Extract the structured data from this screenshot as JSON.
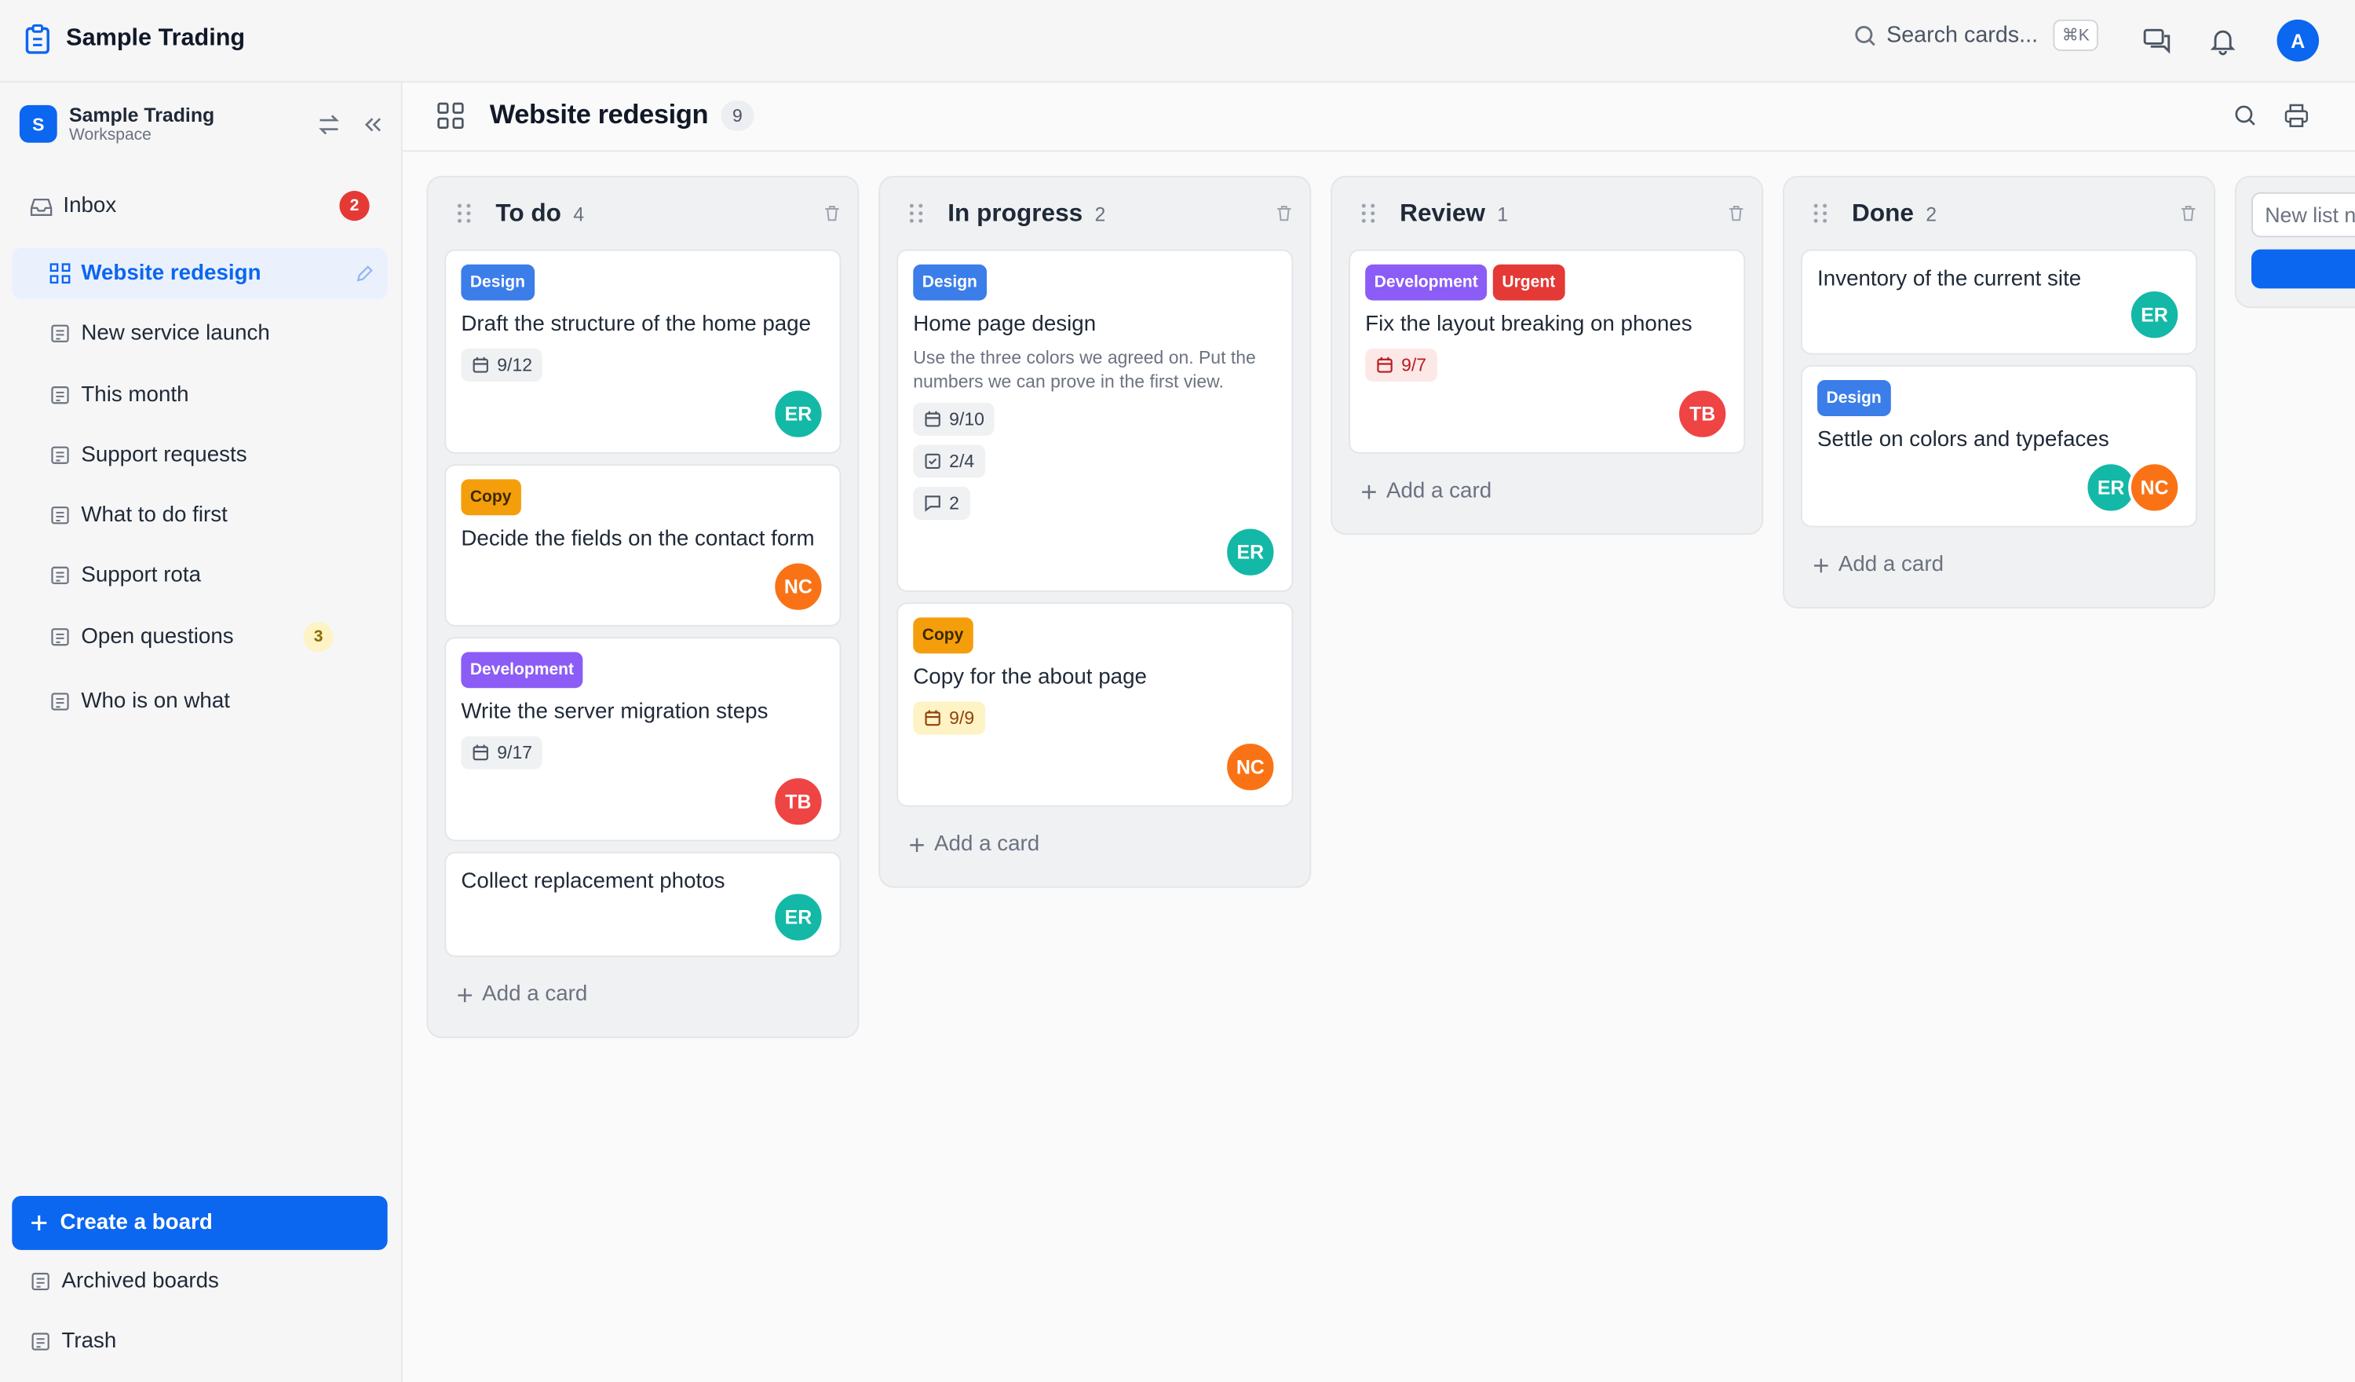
{
  "topbar": {
    "app_name": "Sample Trading",
    "search_placeholder": "Search cards...",
    "shortcut": "⌘K",
    "avatar": "A"
  },
  "sidebar": {
    "workspace_initial": "S",
    "workspace_name": "Sample Trading",
    "workspace_label": "Workspace",
    "inbox": {
      "label": "Inbox",
      "count": 2
    },
    "boards": [
      {
        "label": "Website redesign",
        "active": true
      },
      {
        "label": "New service launch"
      },
      {
        "label": "This month"
      },
      {
        "label": "Support requests"
      },
      {
        "label": "What to do first"
      },
      {
        "label": "Support rota"
      },
      {
        "label": "Open questions",
        "badge": 3
      },
      {
        "label": "Who is on what"
      }
    ],
    "create_button": "Create a board",
    "footer": [
      "Archived boards",
      "Trash"
    ]
  },
  "board": {
    "title": "Website redesign",
    "count": 9,
    "add_card": "Add a card",
    "new_list_placeholder": "New list name",
    "lists": [
      {
        "title": "To do",
        "count": 4,
        "cards": [
          {
            "labels": [
              {
                "text": "Design",
                "color": "#3b7de9"
              }
            ],
            "title": "Draft the structure of the home page",
            "due": {
              "text": "9/12"
            },
            "members": [
              {
                "initials": "ER",
                "color": "#14b8a6"
              }
            ]
          },
          {
            "labels": [
              {
                "text": "Copy",
                "color": "#f59e0b"
              }
            ],
            "title": "Decide the fields on the contact form",
            "members": [
              {
                "initials": "NC",
                "color": "#f97316"
              }
            ]
          },
          {
            "labels": [
              {
                "text": "Development",
                "color": "#8b5cf6"
              }
            ],
            "title": "Write the server migration steps",
            "due": {
              "text": "9/17"
            },
            "members": [
              {
                "initials": "TB",
                "color": "#ef4444"
              }
            ]
          },
          {
            "title": "Collect replacement photos",
            "members": [
              {
                "initials": "ER",
                "color": "#14b8a6"
              }
            ]
          }
        ]
      },
      {
        "title": "In progress",
        "count": 2,
        "cards": [
          {
            "labels": [
              {
                "text": "Design",
                "color": "#3b7de9"
              }
            ],
            "title": "Home page design",
            "description": "Use the three colors we agreed on. Put the numbers we can prove in the first view.",
            "due": {
              "text": "9/10"
            },
            "checklist": "2/4",
            "comments": 2,
            "members": [
              {
                "initials": "ER",
                "color": "#14b8a6"
              }
            ]
          },
          {
            "labels": [
              {
                "text": "Copy",
                "color": "#f59e0b"
              }
            ],
            "title": "Copy for the about page",
            "due": {
              "text": "9/9",
              "status": "soon"
            },
            "members": [
              {
                "initials": "NC",
                "color": "#f97316"
              }
            ]
          }
        ]
      },
      {
        "title": "Review",
        "count": 1,
        "cards": [
          {
            "labels": [
              {
                "text": "Development",
                "color": "#8b5cf6"
              },
              {
                "text": "Urgent",
                "color": "#e53935"
              }
            ],
            "title": "Fix the layout breaking on phones",
            "due": {
              "text": "9/7",
              "status": "overdue"
            },
            "members": [
              {
                "initials": "TB",
                "color": "#ef4444"
              }
            ]
          }
        ]
      },
      {
        "title": "Done",
        "count": 2,
        "cards": [
          {
            "title": "Inventory of the current site",
            "members": [
              {
                "initials": "ER",
                "color": "#14b8a6"
              }
            ]
          },
          {
            "labels": [
              {
                "text": "Design",
                "color": "#3b7de9"
              }
            ],
            "title": "Settle on colors and typefaces",
            "members": [
              {
                "initials": "ER",
                "color": "#14b8a6"
              },
              {
                "initials": "NC",
                "color": "#f97316"
              }
            ]
          }
        ]
      }
    ]
  }
}
